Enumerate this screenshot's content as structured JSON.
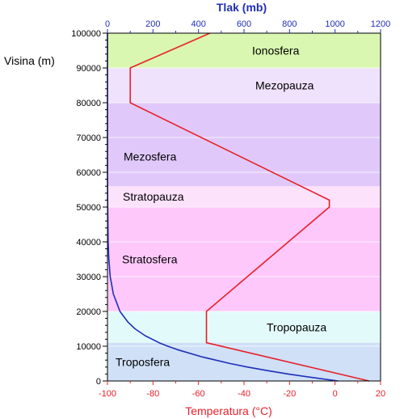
{
  "chart_data": {
    "type": "line",
    "y_axis": {
      "label": "Visina (m)",
      "range": [
        0,
        100000
      ],
      "ticks": [
        "0",
        "10000",
        "20000",
        "30000",
        "40000",
        "50000",
        "60000",
        "70000",
        "80000",
        "90000",
        "100000"
      ],
      "tick_values": [
        0,
        10000,
        20000,
        30000,
        40000,
        50000,
        60000,
        70000,
        80000,
        90000,
        100000
      ]
    },
    "x_axis_bottom": {
      "label": "Temperatura (°C)",
      "range": [
        -100,
        20
      ],
      "ticks": [
        "-100",
        "-80",
        "-60",
        "-40",
        "-20",
        "0",
        "20"
      ],
      "tick_values": [
        -100,
        -80,
        -60,
        -40,
        -20,
        0,
        20
      ],
      "color": "#e8202a"
    },
    "x_axis_top": {
      "label": "Tlak (mb)",
      "range": [
        0,
        1200
      ],
      "ticks": [
        "0",
        "200",
        "400",
        "600",
        "800",
        "1000",
        "1200"
      ],
      "tick_values": [
        0,
        200,
        400,
        600,
        800,
        1000,
        1200
      ],
      "color": "#1f2fb8"
    },
    "layers": [
      {
        "label": "Troposfera",
        "from": 0,
        "to": 11000,
        "color": "#cfe0f7"
      },
      {
        "label": "Tropopauza",
        "from": 11000,
        "to": 20000,
        "color": "#e3fafa"
      },
      {
        "label": "Stratosfera",
        "from": 20000,
        "to": 50000,
        "color": "#fec8fa"
      },
      {
        "label": "Stratopauza",
        "from": 50000,
        "to": 56000,
        "color": "#fde2fc"
      },
      {
        "label": "Mezosfera",
        "from": 56000,
        "to": 80000,
        "color": "#e0c9fa"
      },
      {
        "label": "Mezopauza",
        "from": 80000,
        "to": 90000,
        "color": "#efe2fd"
      },
      {
        "label": "Ionosfera",
        "from": 90000,
        "to": 100000,
        "color": "#d9f7b0"
      }
    ],
    "series": [
      {
        "axis": "bottom",
        "color": "#e8202a",
        "points": [
          [
            15,
            0
          ],
          [
            -56.5,
            11000
          ],
          [
            -56.5,
            20000
          ],
          [
            -2.5,
            50000
          ],
          [
            -2.5,
            52000
          ],
          [
            -90,
            80000
          ],
          [
            -90,
            90000
          ],
          [
            -55,
            100000
          ]
        ]
      },
      {
        "axis": "top",
        "color": "#1f2fb8",
        "points": [
          [
            1013,
            0
          ],
          [
            900,
            1000
          ],
          [
            795,
            2000
          ],
          [
            701,
            3000
          ],
          [
            616,
            4000
          ],
          [
            540,
            5000
          ],
          [
            411,
            7000
          ],
          [
            308,
            9000
          ],
          [
            265,
            10000
          ],
          [
            227,
            11000
          ],
          [
            166,
            13000
          ],
          [
            121,
            15000
          ],
          [
            89,
            17000
          ],
          [
            55,
            20000
          ],
          [
            26,
            25000
          ],
          [
            12,
            30000
          ],
          [
            6,
            35000
          ],
          [
            3,
            40000
          ],
          [
            1,
            50000
          ],
          [
            0,
            60000
          ],
          [
            0,
            100000
          ]
        ]
      }
    ]
  }
}
